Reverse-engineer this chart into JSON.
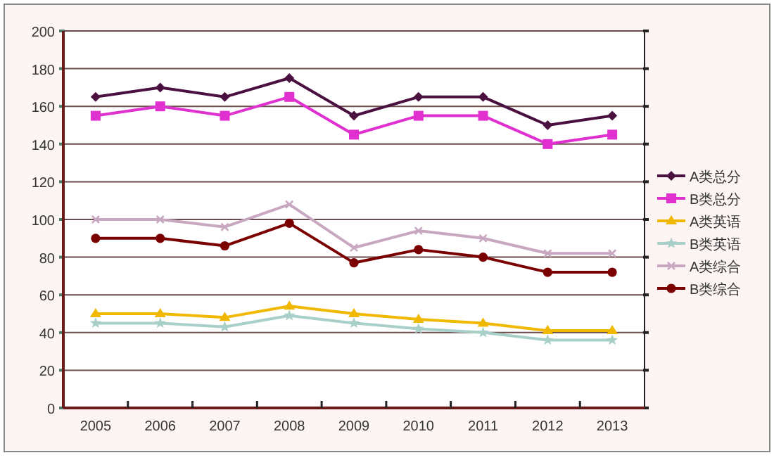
{
  "chart_data": {
    "type": "line",
    "categories": [
      "2005",
      "2006",
      "2007",
      "2008",
      "2009",
      "2010",
      "2011",
      "2012",
      "2013"
    ],
    "ylim": [
      0,
      200
    ],
    "yticks": [
      0,
      20,
      40,
      60,
      80,
      100,
      120,
      140,
      160,
      180,
      200
    ],
    "grid": "y",
    "legend": "right",
    "series": [
      {
        "name": "A类总分",
        "color": "#4a1040",
        "marker": "diamond",
        "values": [
          165,
          170,
          165,
          175,
          155,
          165,
          165,
          150,
          155
        ]
      },
      {
        "name": "B类总分",
        "color": "#e030d0",
        "marker": "square",
        "values": [
          155,
          160,
          155,
          165,
          145,
          155,
          155,
          140,
          145
        ]
      },
      {
        "name": "A类英语",
        "color": "#f0b800",
        "marker": "triangle",
        "values": [
          50,
          50,
          48,
          54,
          50,
          47,
          45,
          41,
          41
        ]
      },
      {
        "name": "B类英语",
        "color": "#a8d0c8",
        "marker": "star",
        "values": [
          45,
          45,
          43,
          49,
          45,
          42,
          40,
          36,
          36
        ]
      },
      {
        "name": "A类综合",
        "color": "#c8a8c0",
        "marker": "cross",
        "values": [
          100,
          100,
          96,
          108,
          85,
          94,
          90,
          82,
          82
        ]
      },
      {
        "name": "B类综合",
        "color": "#7a0000",
        "marker": "circle",
        "values": [
          90,
          90,
          86,
          98,
          77,
          84,
          80,
          72,
          72
        ]
      }
    ]
  }
}
